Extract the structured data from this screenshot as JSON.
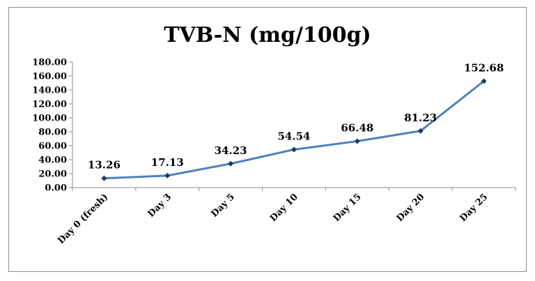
{
  "chart_data": {
    "type": "line",
    "title": "TVB-N (mg/100g)",
    "xlabel": "",
    "ylabel": "",
    "categories": [
      "Day 0 (fresh)",
      "Day 3",
      "Day 5",
      "Day 10",
      "Day 15",
      "Day 20",
      "Day 25"
    ],
    "series": [
      {
        "values": [
          13.26,
          17.13,
          34.23,
          54.54,
          66.48,
          81.23,
          152.68
        ],
        "labels": [
          "13.26",
          "17.13",
          "34.23",
          "54.54",
          "66.48",
          "81.23",
          "152.68"
        ]
      }
    ],
    "ylim": [
      0,
      180
    ],
    "yticks": [
      "0.00",
      "20.00",
      "40.00",
      "60.00",
      "80.00",
      "100.00",
      "120.00",
      "140.00",
      "160.00",
      "180.00"
    ],
    "grid": false,
    "line_color": "#4f81bd",
    "marker_color": "#1f3864"
  }
}
